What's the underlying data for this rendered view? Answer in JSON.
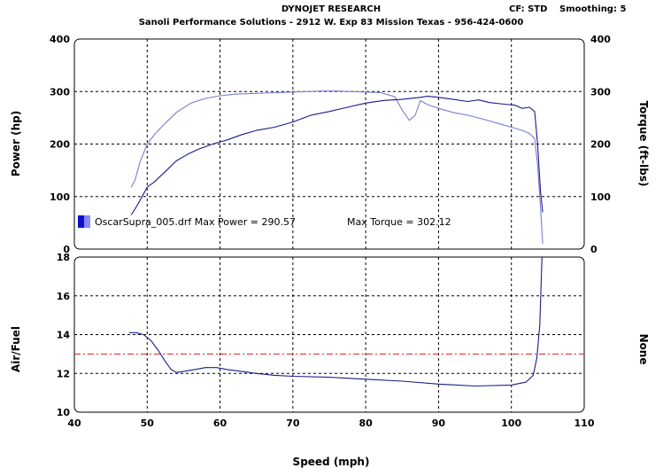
{
  "header": {
    "company": "DYNOJET RESEARCH",
    "shop": "Sanoli Performance Solutions - 2912 W. Exp 83 Mission Texas - 956-424-0600",
    "cf": "CF: STD",
    "smoothing": "Smoothing: 5"
  },
  "legend": {
    "run_label": "OscarSupra_005.drf Max Power = 290.57",
    "torque_label": "Max Torque = 302.12"
  },
  "colors": {
    "power": "#1a1a8c",
    "torque": "#7b7bd8",
    "afr": "#1a1a8c",
    "afr_target": "#d42020",
    "grid": "#000000",
    "swatch_dark": "#1010cc",
    "swatch_light": "#8888ff"
  },
  "chart_data": [
    {
      "type": "line",
      "xlabel": "Speed (mph)",
      "ylabel": "Power (hp)",
      "y2label": "Torque (ft-lbs)",
      "xlim": [
        40,
        110
      ],
      "ylim": [
        0,
        400
      ],
      "y2lim": [
        0,
        400
      ],
      "xticks": [
        40,
        50,
        60,
        70,
        80,
        90,
        100,
        110
      ],
      "yticks": [
        0,
        100,
        200,
        300,
        400
      ],
      "grid": true,
      "legend_position": "bottom-left",
      "series": [
        {
          "name": "Power",
          "x": [
            47.8,
            48.5,
            49.3,
            50.0,
            51.0,
            52.5,
            54.0,
            55.5,
            57.0,
            59.0,
            61.0,
            63.0,
            65.0,
            67.5,
            70.0,
            72.5,
            75.0,
            77.5,
            80.0,
            82.5,
            85.0,
            87.5,
            88.5,
            90.0,
            92.0,
            94.0,
            95.5,
            97.0,
            99.0,
            100.5,
            101.5,
            102.5,
            103.2,
            103.6,
            104.0,
            104.3
          ],
          "values": [
            65,
            80,
            100,
            118,
            128,
            148,
            168,
            180,
            190,
            200,
            208,
            218,
            226,
            232,
            242,
            255,
            262,
            270,
            278,
            283,
            285,
            289,
            291,
            289,
            285,
            281,
            284,
            279,
            276,
            274,
            268,
            270,
            262,
            200,
            110,
            70
          ]
        },
        {
          "name": "Torque",
          "x": [
            47.8,
            48.3,
            49.0,
            50.0,
            51.0,
            52.5,
            54.0,
            56.0,
            58.0,
            60.0,
            62.0,
            64.0,
            66.0,
            68.0,
            70.0,
            72.0,
            74.0,
            76.0,
            78.0,
            80.0,
            82.0,
            84.0,
            85.0,
            86.0,
            86.8,
            87.5,
            88.5,
            90.0,
            92.0,
            94.0,
            96.0,
            98.0,
            100.0,
            101.5,
            102.5,
            103.2,
            103.6,
            104.0,
            104.3
          ],
          "values": [
            118,
            130,
            165,
            200,
            218,
            240,
            260,
            278,
            287,
            292,
            295,
            296,
            297,
            298,
            299,
            300,
            301,
            301,
            300,
            299,
            298,
            290,
            265,
            245,
            255,
            283,
            275,
            268,
            260,
            255,
            248,
            240,
            232,
            226,
            220,
            210,
            160,
            80,
            10
          ]
        }
      ]
    },
    {
      "type": "line",
      "xlabel": "Speed (mph)",
      "ylabel": "Air/Fuel",
      "y2label": "None",
      "xlim": [
        40,
        110
      ],
      "ylim": [
        10,
        18
      ],
      "xticks": [
        40,
        50,
        60,
        70,
        80,
        90,
        100,
        110
      ],
      "yticks": [
        10,
        12,
        14,
        16,
        18
      ],
      "grid": true,
      "reference_line": 13,
      "series": [
        {
          "name": "Air/Fuel",
          "x": [
            47.5,
            48.5,
            49.5,
            50.5,
            51.5,
            52.5,
            53.3,
            54.0,
            55.0,
            56.5,
            58.0,
            59.5,
            61.0,
            63.0,
            65.0,
            67.5,
            70.0,
            75.0,
            80.0,
            85.0,
            90.0,
            95.0,
            100.0,
            102.0,
            103.0,
            103.5,
            103.9,
            104.2
          ],
          "values": [
            14.1,
            14.1,
            14.0,
            13.7,
            13.2,
            12.6,
            12.2,
            12.05,
            12.1,
            12.2,
            12.3,
            12.3,
            12.2,
            12.1,
            12.0,
            11.9,
            11.85,
            11.8,
            11.7,
            11.6,
            11.45,
            11.35,
            11.4,
            11.55,
            11.9,
            12.8,
            14.5,
            18.0
          ]
        }
      ]
    }
  ]
}
